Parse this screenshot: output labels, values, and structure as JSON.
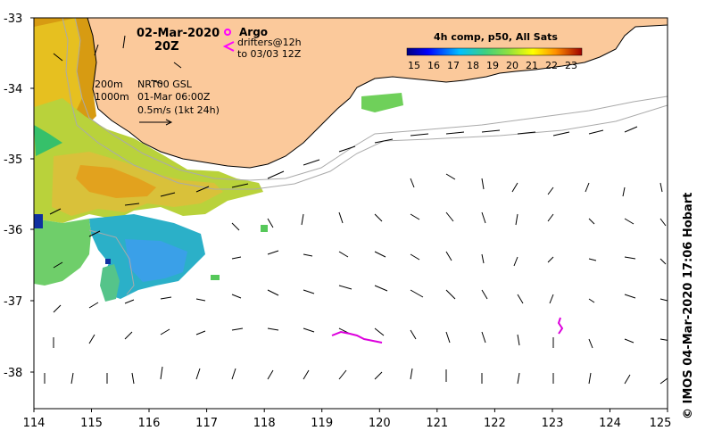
{
  "map": {
    "date_label": "02-Mar-2020",
    "time_label": "20Z",
    "bathymetry_labels": [
      "200m",
      "1000m"
    ],
    "altimetry": {
      "product": "NRT00 GSL",
      "time": "01-Mar 06:00Z",
      "scale": "0.5m/s (1kt 24h)"
    },
    "argo_label": "Argo",
    "drifters_label": "drifters@12h",
    "drifters_until": "to 03/03 12Z",
    "colorbar": {
      "title": "4h comp, p50, All Sats",
      "ticks": [
        "15",
        "16",
        "17",
        "18",
        "19",
        "20",
        "21",
        "22",
        "23"
      ]
    },
    "lat_ticks": [
      "-33",
      "-34",
      "-35",
      "-36",
      "-37",
      "-38"
    ],
    "lon_ticks": [
      "114",
      "115",
      "116",
      "117",
      "118",
      "119",
      "120",
      "121",
      "122",
      "123",
      "124",
      "125"
    ],
    "credit": "IMOS 04-Mar-2020 17:06 Hobart",
    "credit_symbol": "©",
    "colors": {
      "land": "#fbc99b",
      "argo": "#ff00ff",
      "drifter": "#dd00dd",
      "bathymetry": "#aaaaaa"
    }
  }
}
